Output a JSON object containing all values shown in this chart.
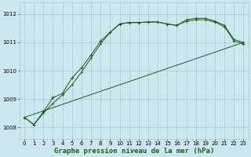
{
  "background_color": "#cce8ee",
  "grid_color": "#aac8d0",
  "line_color": "#1a5c1a",
  "marker_color": "#1a5c1a",
  "xlabel": "Graphe pression niveau de la mer (hPa)",
  "xlabel_fontsize": 6.5,
  "ylim": [
    1007.6,
    1012.4
  ],
  "xlim": [
    -0.5,
    23.5
  ],
  "yticks": [
    1008,
    1009,
    1010,
    1011,
    1012
  ],
  "xticks": [
    0,
    1,
    2,
    3,
    4,
    5,
    6,
    7,
    8,
    9,
    10,
    11,
    12,
    13,
    14,
    15,
    16,
    17,
    18,
    19,
    20,
    21,
    22,
    23
  ],
  "series1_x": [
    0,
    1,
    2,
    3,
    4,
    5,
    6,
    7,
    8,
    9,
    10,
    11,
    12,
    13,
    14,
    15,
    16,
    17,
    18,
    19,
    20,
    21,
    22,
    23
  ],
  "series1_y": [
    1008.35,
    1008.1,
    1008.55,
    1009.05,
    1009.2,
    1009.75,
    1010.1,
    1010.55,
    1011.05,
    1011.35,
    1011.65,
    1011.7,
    1011.7,
    1011.72,
    1011.72,
    1011.65,
    1011.6,
    1011.75,
    1011.8,
    1011.8,
    1011.72,
    1011.55,
    1011.05,
    1010.95
  ],
  "series2_x": [
    0,
    1,
    2,
    3,
    4,
    5,
    6,
    7,
    8,
    9,
    10,
    11,
    12,
    13,
    14,
    15,
    16,
    17,
    18,
    19,
    20,
    21,
    22,
    23
  ],
  "series2_y": [
    1008.35,
    1008.1,
    1008.5,
    1008.85,
    1009.15,
    1009.5,
    1009.95,
    1010.45,
    1010.95,
    1011.35,
    1011.65,
    1011.7,
    1011.7,
    1011.72,
    1011.72,
    1011.65,
    1011.6,
    1011.8,
    1011.85,
    1011.85,
    1011.75,
    1011.6,
    1011.1,
    1011.0
  ],
  "series3_x": [
    0,
    23
  ],
  "series3_y": [
    1008.35,
    1011.0
  ]
}
